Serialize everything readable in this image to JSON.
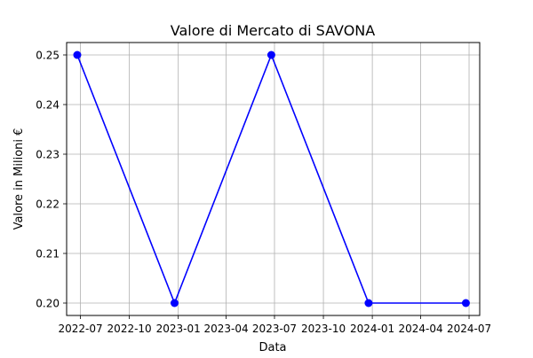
{
  "chart_data": {
    "type": "line",
    "title": "Valore di Mercato di SAVONA",
    "xlabel": "Data",
    "ylabel": "Valore in Milioni €",
    "x_ticks": [
      "2022-07",
      "2022-10",
      "2023-01",
      "2023-04",
      "2023-07",
      "2023-10",
      "2024-01",
      "2024-04",
      "2024-07"
    ],
    "y_ticks": [
      "0.20",
      "0.21",
      "0.22",
      "0.23",
      "0.24",
      "0.25"
    ],
    "xlim": [
      "2022-06-05",
      "2024-07-21"
    ],
    "ylim": [
      0.1975,
      0.2525
    ],
    "grid": true,
    "series": [
      {
        "color": "#0000ff",
        "marker": "circle",
        "points": [
          {
            "x": "2022-06-25",
            "y": 0.25
          },
          {
            "x": "2022-12-25",
            "y": 0.2
          },
          {
            "x": "2023-06-25",
            "y": 0.25
          },
          {
            "x": "2023-12-25",
            "y": 0.2
          },
          {
            "x": "2024-06-25",
            "y": 0.2
          }
        ]
      }
    ]
  }
}
